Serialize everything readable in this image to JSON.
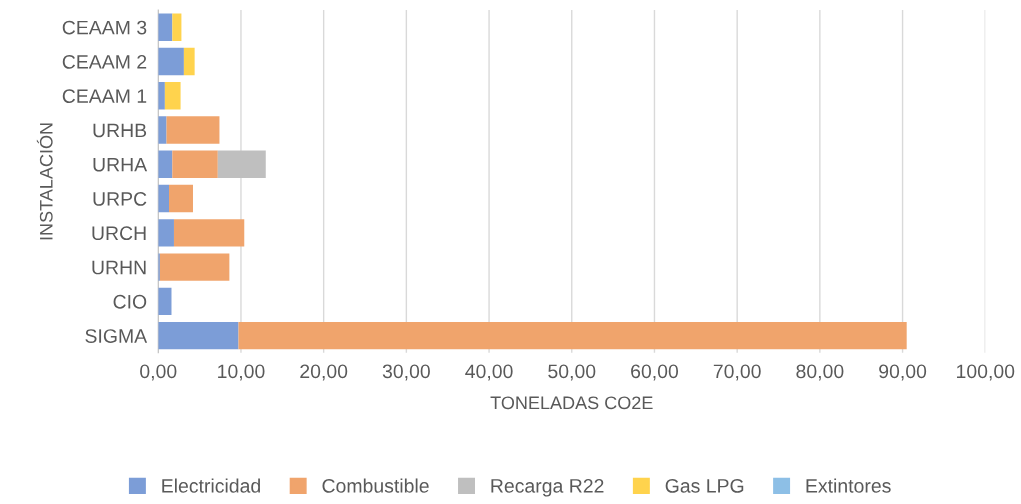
{
  "chart_data": {
    "type": "bar",
    "orientation": "horizontal",
    "stacked": true,
    "xlabel": "TONELADAS CO2E",
    "ylabel": "INSTALACIÓN",
    "categories": [
      "CEAAM 3",
      "CEAAM 2",
      "CEAAM 1",
      "URHB",
      "URHA",
      "URPC",
      "URCH",
      "URHN",
      "CIO",
      "SIGMA"
    ],
    "series": [
      {
        "name": "Electricidad",
        "color": "#7c9dd7",
        "values": [
          1.7,
          3.1,
          0.8,
          1.0,
          1.7,
          1.3,
          1.9,
          0.2,
          1.6,
          9.7
        ]
      },
      {
        "name": "Combustible",
        "color": "#f0a46c",
        "values": [
          null,
          null,
          null,
          6.4,
          5.5,
          2.9,
          8.5,
          8.4,
          null,
          80.8
        ]
      },
      {
        "name": "Recarga R22",
        "color": "#bfbfbf",
        "values": [
          null,
          null,
          null,
          null,
          5.8,
          null,
          null,
          null,
          null,
          null
        ]
      },
      {
        "name": "Gas LPG",
        "color": "#ffd34d",
        "values": [
          1.1,
          1.3,
          1.9,
          null,
          null,
          null,
          null,
          null,
          null,
          null
        ]
      },
      {
        "name": "Extintores",
        "color": "#8dbfe6",
        "values": [
          null,
          null,
          null,
          null,
          null,
          null,
          null,
          null,
          null,
          null
        ]
      }
    ],
    "xlim": [
      0,
      100
    ],
    "xticks": [
      {
        "value": 0,
        "label": "0,00"
      },
      {
        "value": 10,
        "label": "10,00"
      },
      {
        "value": 20,
        "label": "20,00"
      },
      {
        "value": 30,
        "label": "30,00"
      },
      {
        "value": 40,
        "label": "40,00"
      },
      {
        "value": 50,
        "label": "50,00"
      },
      {
        "value": 60,
        "label": "60,00"
      },
      {
        "value": 70,
        "label": "70,00"
      },
      {
        "value": 80,
        "label": "80,00"
      },
      {
        "value": 90,
        "label": "90,00"
      },
      {
        "value": 100,
        "label": "100,00"
      }
    ],
    "grid": "x",
    "legend": "bottom"
  }
}
